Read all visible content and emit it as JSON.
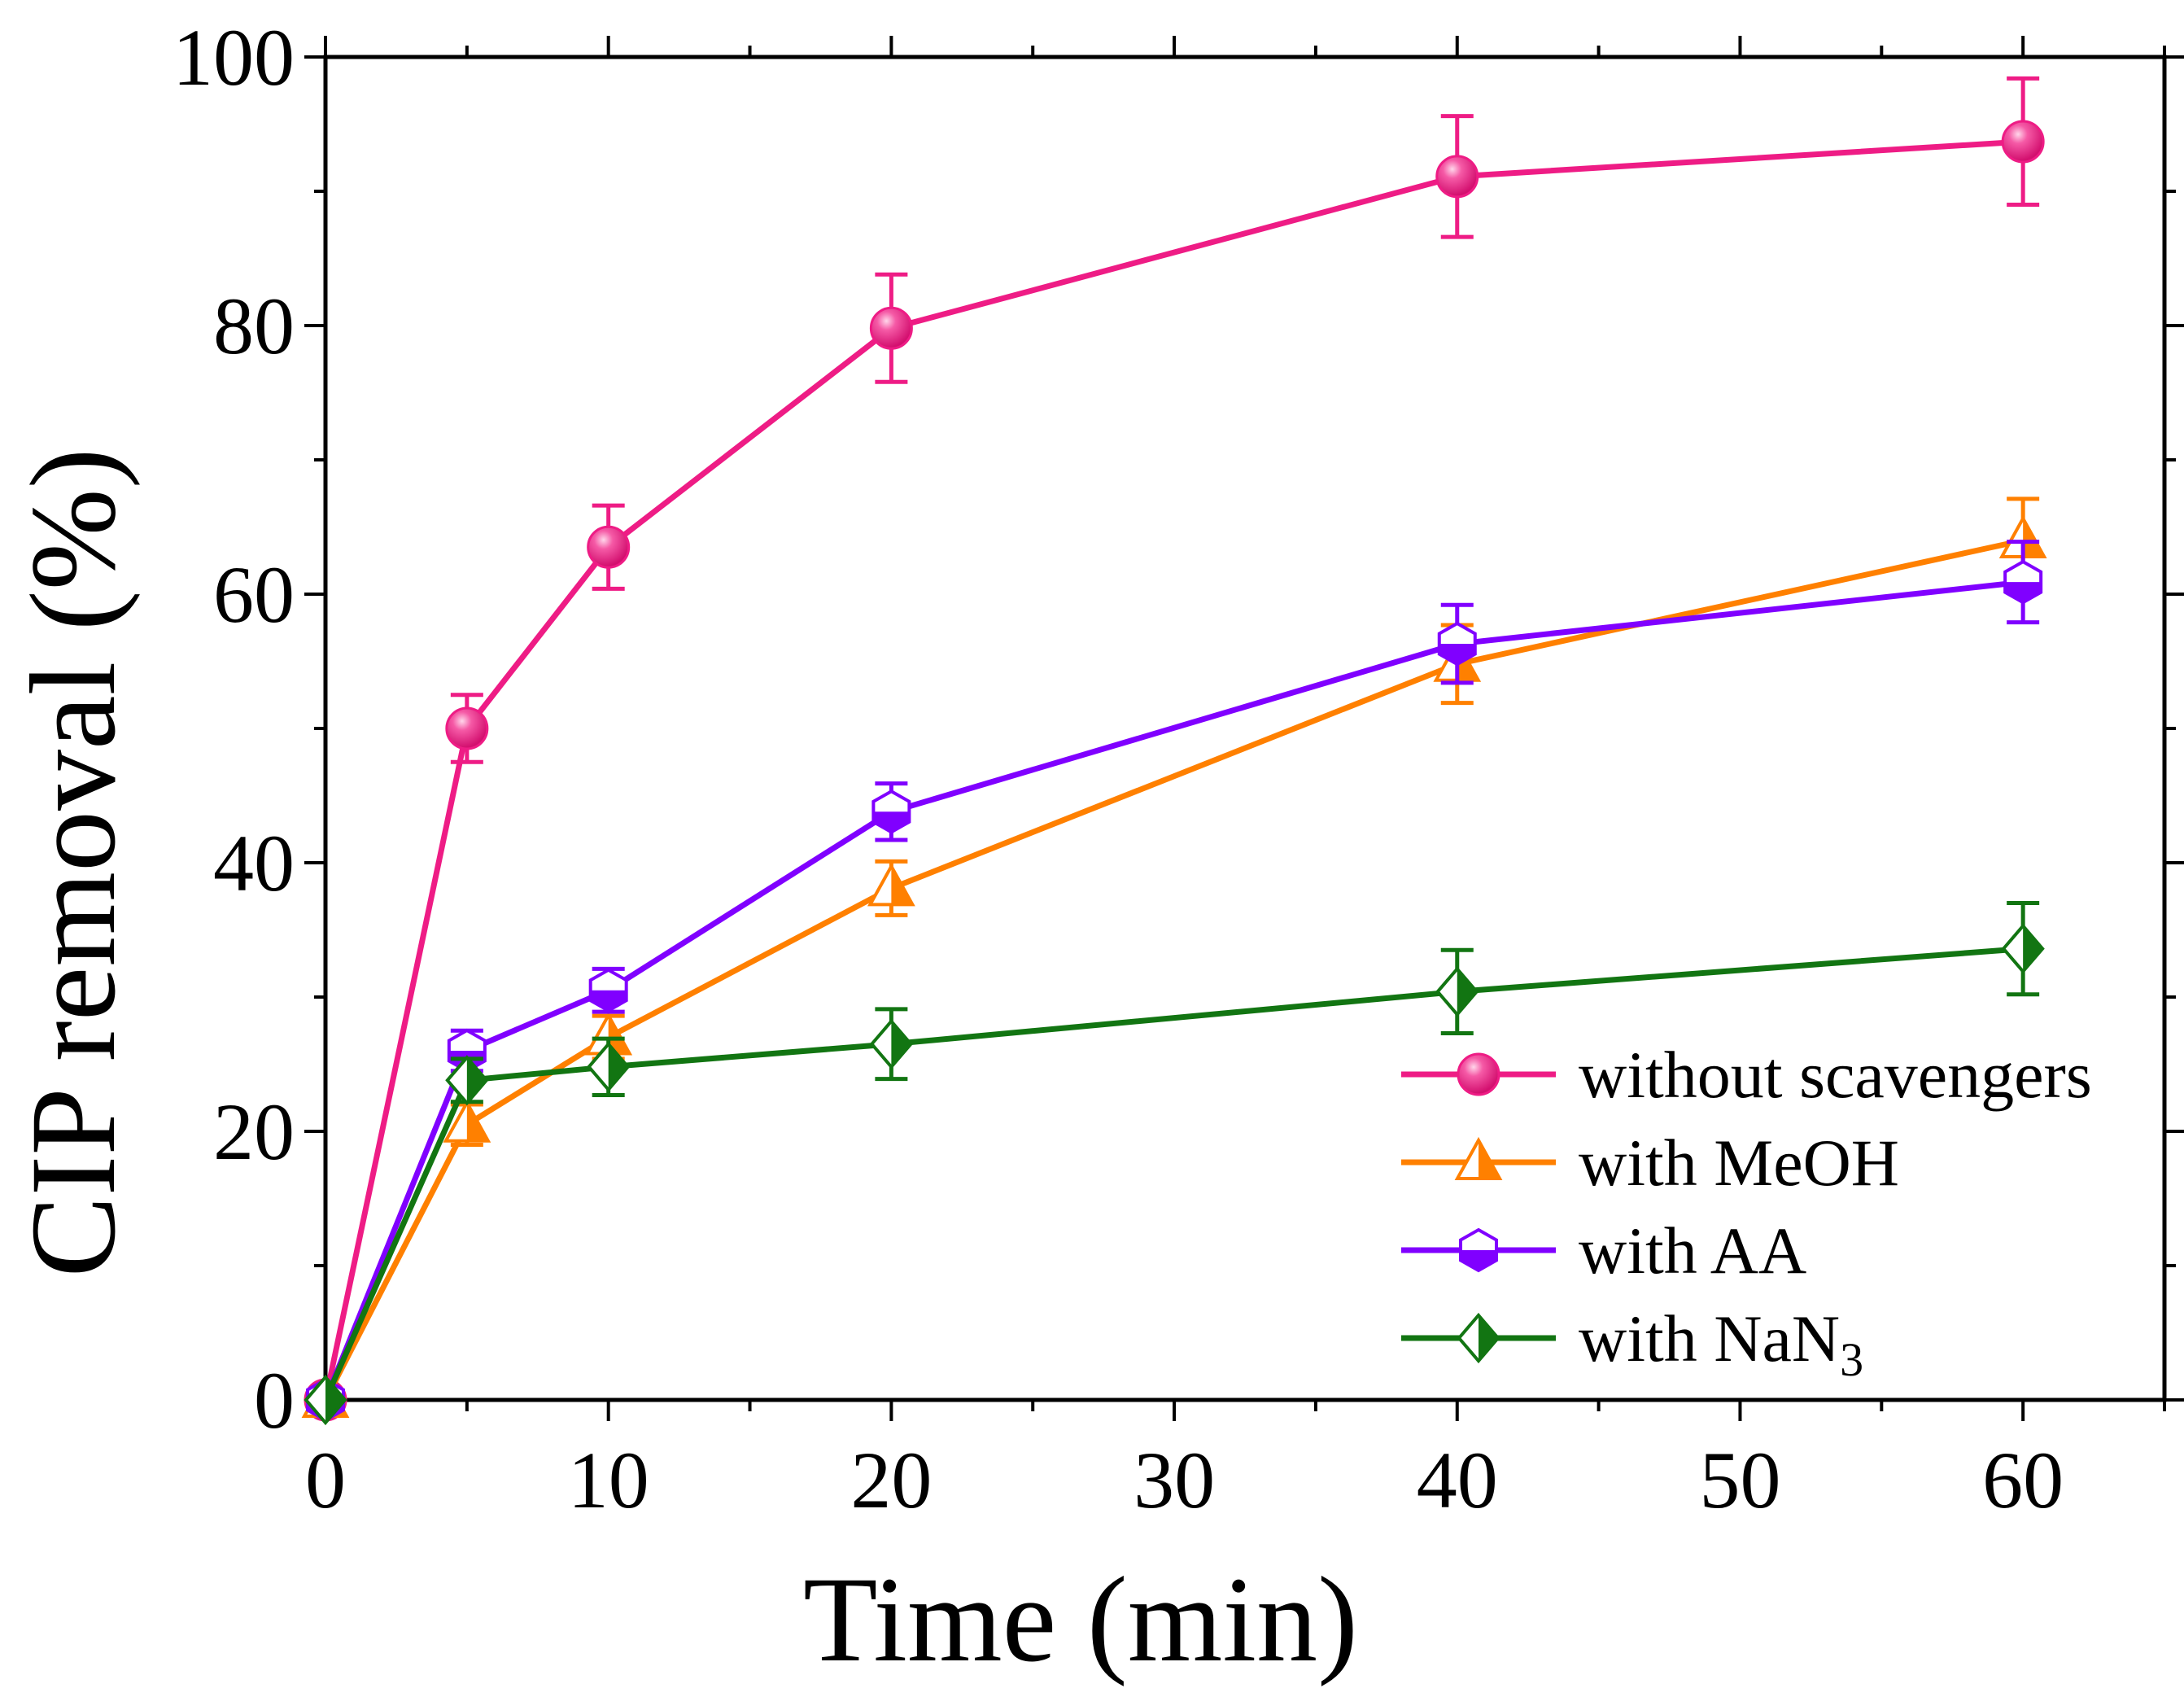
{
  "chart_data": {
    "type": "line",
    "title": "",
    "xlabel": "Time (min)",
    "ylabel": "CIP removal (%)",
    "xlim": [
      0,
      65
    ],
    "ylim": [
      0,
      100
    ],
    "xticks": [
      0,
      10,
      20,
      30,
      40,
      50,
      60
    ],
    "yticks": [
      0,
      20,
      40,
      60,
      80,
      100
    ],
    "x": [
      0,
      5,
      10,
      20,
      40,
      60
    ],
    "legend_position": "bottom-right",
    "series": [
      {
        "name": "without scavengers",
        "color": "#ee1c85",
        "marker": "circle",
        "values": [
          0,
          50,
          63.5,
          79.8,
          91.1,
          93.7
        ],
        "errors": [
          0,
          2.5,
          3.1,
          4.0,
          4.5,
          4.7
        ]
      },
      {
        "name": "with MeOH",
        "legend_sub": "",
        "color": "#ff8000",
        "marker": "triangle",
        "values": [
          0,
          20.5,
          27,
          38.1,
          54.8,
          64
        ],
        "errors": [
          0,
          1.5,
          1.6,
          2.0,
          2.9,
          3.1
        ]
      },
      {
        "name": "with AA",
        "legend_sub": "",
        "color": "#8000ff",
        "marker": "hexagon",
        "values": [
          0,
          26,
          30.5,
          43.8,
          56.3,
          60.9
        ],
        "errors": [
          0,
          1.5,
          1.6,
          2.1,
          2.9,
          3.0
        ]
      },
      {
        "name": "with NaN",
        "legend_sub": "3",
        "color": "#127512",
        "marker": "diamond",
        "values": [
          0,
          23.8,
          24.8,
          26.5,
          30.4,
          33.6
        ],
        "errors": [
          0,
          1.6,
          2.1,
          2.6,
          3.1,
          3.4
        ]
      }
    ]
  }
}
